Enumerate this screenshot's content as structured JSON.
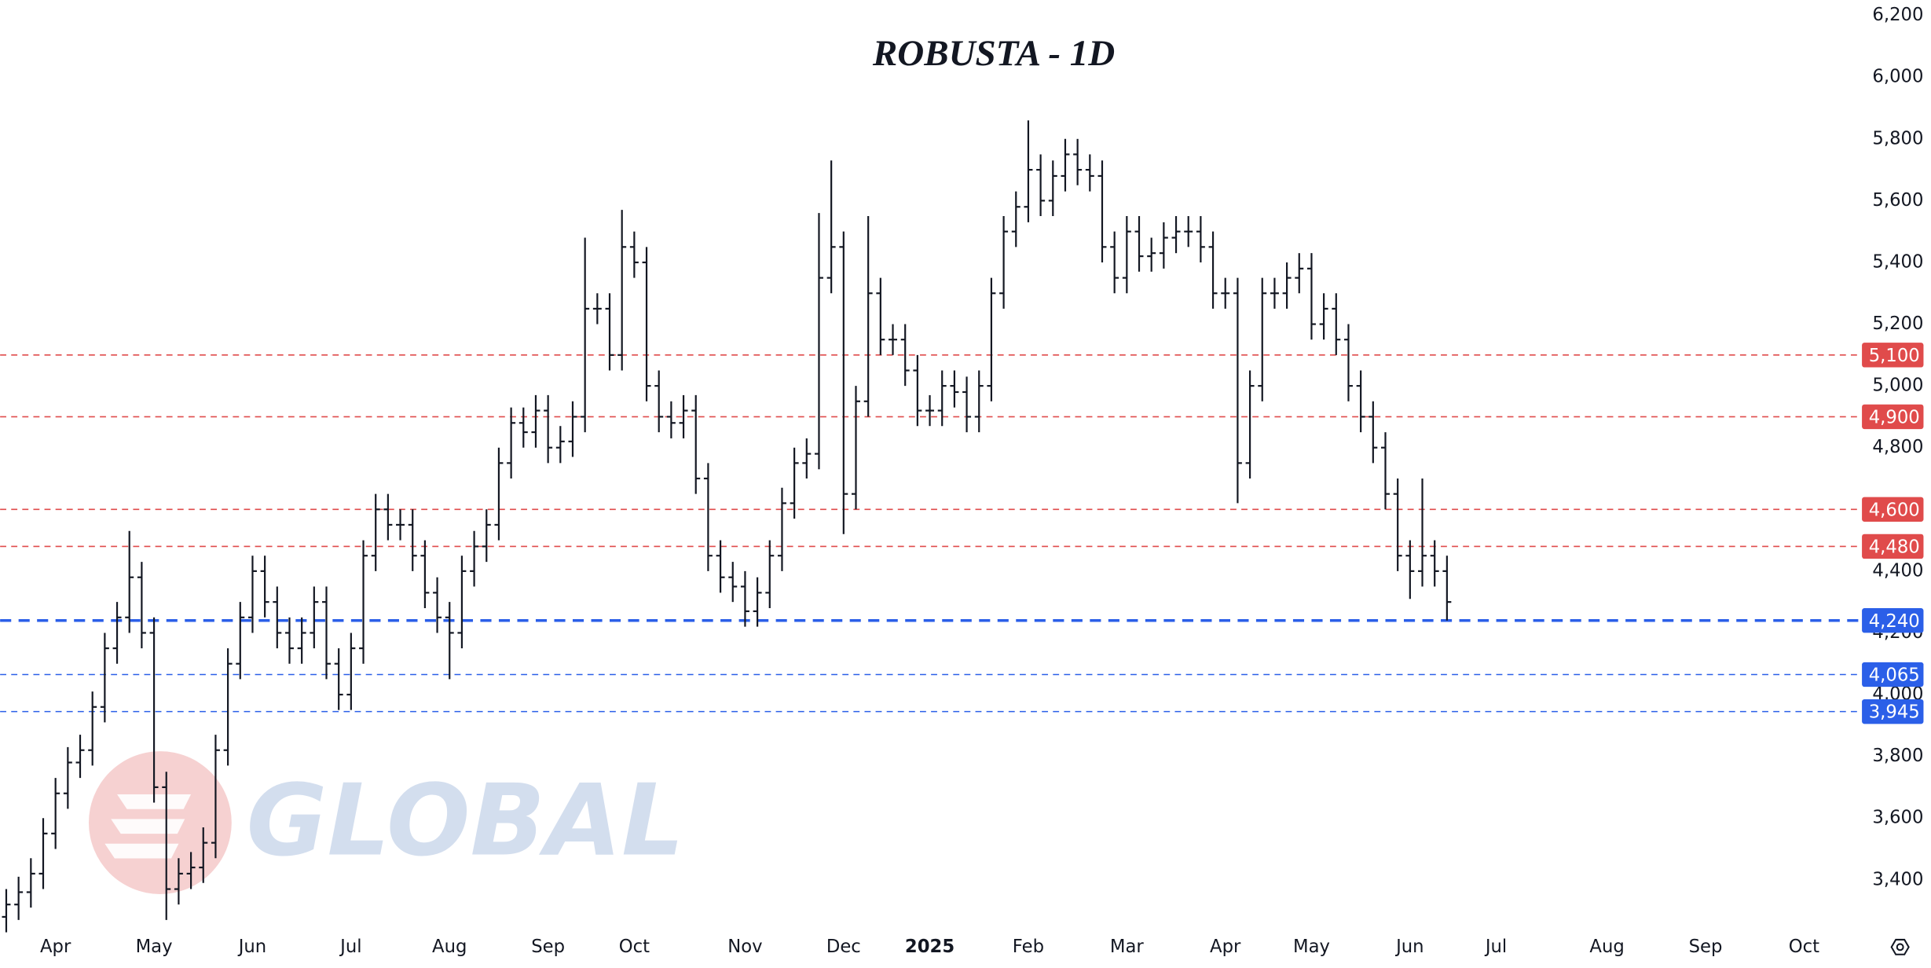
{
  "chart_data": {
    "type": "ohlc",
    "title": "ROBUSTA - 1D",
    "watermark": "GLOBAL",
    "color": "#131722",
    "ylim": [
      3250,
      6250
    ],
    "yticks": [
      {
        "value": 3400,
        "label": "3,400"
      },
      {
        "value": 3600,
        "label": "3,600"
      },
      {
        "value": 3800,
        "label": "3,800"
      },
      {
        "value": 4000,
        "label": "4,000"
      },
      {
        "value": 4200,
        "label": "4,200"
      },
      {
        "value": 4400,
        "label": "4,400"
      },
      {
        "value": 4600,
        "label": "4,600"
      },
      {
        "value": 4800,
        "label": "4,800"
      },
      {
        "value": 5000,
        "label": "5,000"
      },
      {
        "value": 5200,
        "label": "5,200"
      },
      {
        "value": 5400,
        "label": "5,400"
      },
      {
        "value": 5600,
        "label": "5,600"
      },
      {
        "value": 5800,
        "label": "5,800"
      },
      {
        "value": 6000,
        "label": "6,000"
      },
      {
        "value": 6200,
        "label": "6,200"
      }
    ],
    "levels": [
      {
        "value": 5100,
        "label": "5,100",
        "color": "#e04b4b",
        "width": 1
      },
      {
        "value": 4900,
        "label": "4,900",
        "color": "#e04b4b",
        "width": 1
      },
      {
        "value": 4600,
        "label": "4,600",
        "color": "#e04b4b",
        "width": 1
      },
      {
        "value": 4480,
        "label": "4,480",
        "color": "#e04b4b",
        "width": 1
      },
      {
        "value": 4240,
        "label": "4,240",
        "color": "#2b5fe8",
        "width": 2.2
      },
      {
        "value": 4065,
        "label": "4,065",
        "color": "#2b5fe8",
        "width": 1
      },
      {
        "value": 3945,
        "label": "3,945",
        "color": "#2b5fe8",
        "width": 1
      }
    ],
    "categories": [
      null,
      null,
      null,
      null,
      "Apr",
      null,
      null,
      null,
      null,
      null,
      null,
      null,
      "May",
      null,
      null,
      null,
      null,
      null,
      null,
      null,
      "Jun",
      null,
      null,
      null,
      null,
      null,
      null,
      null,
      "Jul",
      null,
      null,
      null,
      null,
      null,
      null,
      null,
      "Aug",
      null,
      null,
      null,
      null,
      null,
      null,
      null,
      "Sep",
      null,
      null,
      null,
      null,
      null,
      null,
      "Oct",
      null,
      null,
      null,
      null,
      null,
      null,
      null,
      null,
      "Nov",
      null,
      null,
      null,
      null,
      null,
      null,
      null,
      "Dec",
      null,
      null,
      null,
      null,
      null,
      null,
      "2025",
      null,
      null,
      null,
      null,
      null,
      null,
      null,
      "Feb",
      null,
      null,
      null,
      null,
      null,
      null,
      null,
      "Mar",
      null,
      null,
      null,
      null,
      null,
      null,
      null,
      "Apr",
      null,
      null,
      null,
      null,
      null,
      null,
      "May",
      null,
      null,
      null,
      null,
      null,
      null,
      null,
      "Jun",
      null,
      null,
      null,
      null,
      null,
      null,
      "Jul",
      null,
      null,
      null,
      null,
      null,
      null,
      null,
      null,
      "Aug",
      null,
      null,
      null,
      null,
      null,
      null,
      null,
      "Sep",
      null,
      null,
      null,
      null,
      null,
      null,
      null,
      "Oct",
      null,
      null,
      null
    ],
    "open": [
      3280,
      3320,
      3360,
      3420,
      3550,
      3680,
      3780,
      3820,
      3960,
      4150,
      4250,
      4380,
      4200,
      3700,
      3370,
      3420,
      3440,
      3520,
      3820,
      4100,
      4250,
      4400,
      4300,
      4200,
      4150,
      4200,
      4300,
      4100,
      4000,
      4150,
      4450,
      4600,
      4550,
      4550,
      4450,
      4330,
      4250,
      4200,
      4400,
      4480,
      4550,
      4750,
      4880,
      4850,
      4920,
      4800,
      4820,
      4900,
      5250,
      5250,
      5100,
      5450,
      5400,
      5000,
      4900,
      4880,
      4920,
      4700,
      4450,
      4380,
      4350,
      4270,
      4330,
      4450,
      4620,
      4750,
      4780,
      5350,
      5450,
      4650,
      4950,
      5300,
      5150,
      5150,
      5050,
      4920,
      4920,
      5000,
      4980,
      4900,
      5000,
      5300,
      5500,
      5580,
      5700,
      5600,
      5680,
      5750,
      5700,
      5680,
      5450,
      5350,
      5500,
      5420,
      5430,
      5480,
      5500,
      5500,
      5450,
      5300,
      5300,
      4750,
      5000,
      5300,
      5300,
      5350,
      5380,
      5200,
      5250,
      5150,
      5000,
      4900,
      4800,
      4650,
      4450,
      4400,
      4450,
      4400,
      null,
      null,
      null,
      null,
      null,
      null,
      null,
      null,
      null,
      null,
      null,
      null,
      null,
      null,
      null,
      null,
      null,
      null,
      null,
      null,
      null,
      null,
      null,
      null,
      null,
      null,
      null,
      null,
      null,
      null,
      null,
      null
    ],
    "high": [
      3370,
      3410,
      3470,
      3600,
      3730,
      3830,
      3870,
      4010,
      4200,
      4300,
      4530,
      4430,
      4250,
      3750,
      3470,
      3490,
      3570,
      3870,
      4150,
      4300,
      4450,
      4450,
      4350,
      4250,
      4250,
      4350,
      4350,
      4150,
      4200,
      4500,
      4650,
      4650,
      4600,
      4600,
      4500,
      4380,
      4300,
      4450,
      4530,
      4600,
      4800,
      4930,
      4930,
      4970,
      4970,
      4870,
      4950,
      5480,
      5300,
      5300,
      5570,
      5500,
      5450,
      5050,
      4950,
      4970,
      4970,
      4750,
      4500,
      4430,
      4400,
      4380,
      4500,
      4670,
      4800,
      4830,
      5560,
      5730,
      5500,
      5000,
      5550,
      5350,
      5200,
      5200,
      5100,
      4970,
      5050,
      5050,
      5030,
      5050,
      5350,
      5550,
      5630,
      5860,
      5750,
      5730,
      5800,
      5800,
      5750,
      5730,
      5500,
      5550,
      5550,
      5480,
      5530,
      5550,
      5550,
      5550,
      5500,
      5350,
      5350,
      5050,
      5350,
      5350,
      5400,
      5430,
      5430,
      5300,
      5300,
      5200,
      5050,
      4950,
      4850,
      4700,
      4500,
      4700,
      4500,
      4450,
      null,
      null,
      null,
      null,
      null,
      null,
      null,
      null,
      null,
      null,
      null,
      null,
      null,
      null,
      null,
      null,
      null,
      null,
      null,
      null,
      null,
      null,
      null,
      null,
      null,
      null,
      null,
      null,
      null,
      null,
      null,
      null
    ],
    "low": [
      3230,
      3270,
      3310,
      3370,
      3500,
      3630,
      3730,
      3770,
      3910,
      4100,
      4200,
      4150,
      3650,
      3270,
      3320,
      3370,
      3390,
      3470,
      3770,
      4050,
      4200,
      4250,
      4150,
      4100,
      4100,
      4150,
      4050,
      3950,
      3950,
      4100,
      4400,
      4500,
      4500,
      4400,
      4280,
      4200,
      4050,
      4150,
      4350,
      4430,
      4500,
      4700,
      4800,
      4800,
      4750,
      4750,
      4770,
      4850,
      5200,
      5050,
      5050,
      5350,
      4950,
      4850,
      4830,
      4830,
      4650,
      4400,
      4330,
      4300,
      4220,
      4220,
      4280,
      4400,
      4570,
      4700,
      4730,
      5300,
      4520,
      4600,
      4900,
      5100,
      5100,
      5000,
      4870,
      4870,
      4870,
      4930,
      4850,
      4850,
      4950,
      5250,
      5450,
      5530,
      5550,
      5550,
      5630,
      5650,
      5630,
      5400,
      5300,
      5300,
      5370,
      5370,
      5380,
      5430,
      5450,
      5400,
      5250,
      5250,
      4620,
      4700,
      4950,
      5250,
      5250,
      5300,
      5150,
      5150,
      5100,
      4950,
      4850,
      4750,
      4600,
      4400,
      4310,
      4350,
      4350,
      4240,
      null,
      null,
      null,
      null,
      null,
      null,
      null,
      null,
      null,
      null,
      null,
      null,
      null,
      null,
      null,
      null,
      null,
      null,
      null,
      null,
      null,
      null,
      null,
      null,
      null,
      null,
      null,
      null,
      null,
      null,
      null,
      null
    ],
    "close": [
      3320,
      3360,
      3420,
      3550,
      3680,
      3780,
      3820,
      3960,
      4150,
      4250,
      4380,
      4200,
      3700,
      3370,
      3420,
      3440,
      3520,
      3820,
      4100,
      4250,
      4400,
      4300,
      4200,
      4150,
      4200,
      4300,
      4100,
      4000,
      4150,
      4450,
      4600,
      4550,
      4550,
      4450,
      4330,
      4250,
      4200,
      4400,
      4480,
      4550,
      4750,
      4880,
      4850,
      4920,
      4800,
      4820,
      4900,
      5250,
      5250,
      5100,
      5450,
      5400,
      5000,
      4900,
      4880,
      4920,
      4700,
      4450,
      4380,
      4350,
      4270,
      4330,
      4450,
      4620,
      4750,
      4780,
      5350,
      5450,
      4650,
      4950,
      5300,
      5150,
      5150,
      5050,
      4920,
      4920,
      5000,
      4980,
      4900,
      5000,
      5300,
      5500,
      5580,
      5700,
      5600,
      5680,
      5750,
      5700,
      5680,
      5450,
      5350,
      5500,
      5420,
      5430,
      5480,
      5500,
      5500,
      5450,
      5300,
      5300,
      4750,
      5000,
      5300,
      5300,
      5350,
      5380,
      5200,
      5250,
      5150,
      5000,
      4900,
      4800,
      4650,
      4450,
      4400,
      4450,
      4400,
      4300,
      null,
      null,
      null,
      null,
      null,
      null,
      null,
      null,
      null,
      null,
      null,
      null,
      null,
      null,
      null,
      null,
      null,
      null,
      null,
      null,
      null,
      null,
      null,
      null,
      null,
      null,
      null,
      null,
      null,
      null,
      null,
      null
    ]
  }
}
